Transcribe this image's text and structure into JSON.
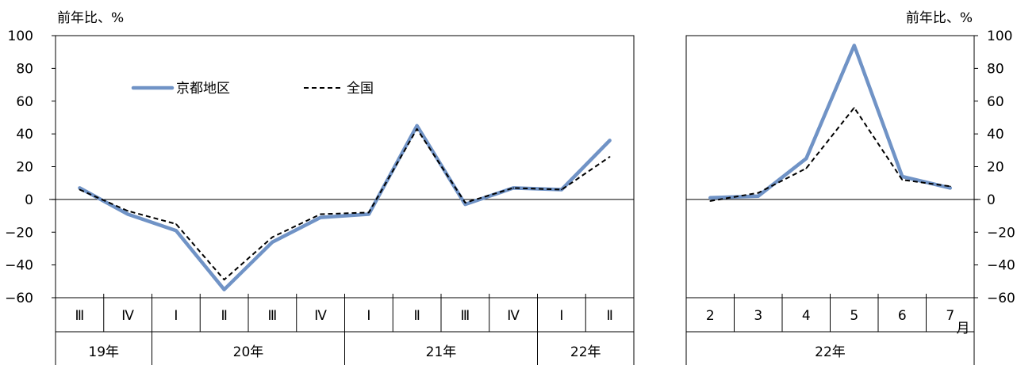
{
  "chart_data": [
    {
      "type": "line",
      "ylabel": "前年比、%",
      "ylim": [
        -60,
        100
      ],
      "yticks": [
        "100",
        "80",
        "60",
        "40",
        "20",
        "0",
        "−20",
        "−40",
        "−60"
      ],
      "categories": [
        "Ⅲ",
        "Ⅳ",
        "Ⅰ",
        "Ⅱ",
        "Ⅲ",
        "Ⅳ",
        "Ⅰ",
        "Ⅱ",
        "Ⅲ",
        "Ⅳ",
        "Ⅰ",
        "Ⅱ"
      ],
      "year_groups": [
        {
          "label": "19年",
          "span": 2
        },
        {
          "label": "20年",
          "span": 4
        },
        {
          "label": "21年",
          "span": 4
        },
        {
          "label": "22年",
          "span": 2
        }
      ],
      "legend_position": "top-left",
      "series": [
        {
          "name": "京都地区",
          "color": "#7093C6",
          "style": "solid",
          "values": [
            7,
            -9,
            -19,
            -55,
            -26,
            -11,
            -9,
            45,
            -3,
            7,
            6,
            36
          ]
        },
        {
          "name": "全国",
          "color": "#000000",
          "style": "dashed",
          "values": [
            6,
            -7,
            -15,
            -49,
            -23,
            -9,
            -8,
            43,
            -2,
            7,
            6,
            26
          ]
        }
      ]
    },
    {
      "type": "line",
      "ylabel": "前年比、%",
      "ylim": [
        -60,
        100
      ],
      "yticks": [
        "100",
        "80",
        "60",
        "40",
        "20",
        "0",
        "−20",
        "−40",
        "−60"
      ],
      "categories": [
        "2",
        "3",
        "4",
        "5",
        "6",
        "7"
      ],
      "x_unit": "月",
      "year_groups": [
        {
          "label": "22年",
          "span": 6
        }
      ],
      "series": [
        {
          "name": "京都地区",
          "color": "#7093C6",
          "style": "solid",
          "values": [
            1,
            2,
            25,
            94,
            14,
            7
          ]
        },
        {
          "name": "全国",
          "color": "#000000",
          "style": "dashed",
          "values": [
            -1,
            4,
            19,
            56,
            12,
            8
          ]
        }
      ]
    }
  ]
}
